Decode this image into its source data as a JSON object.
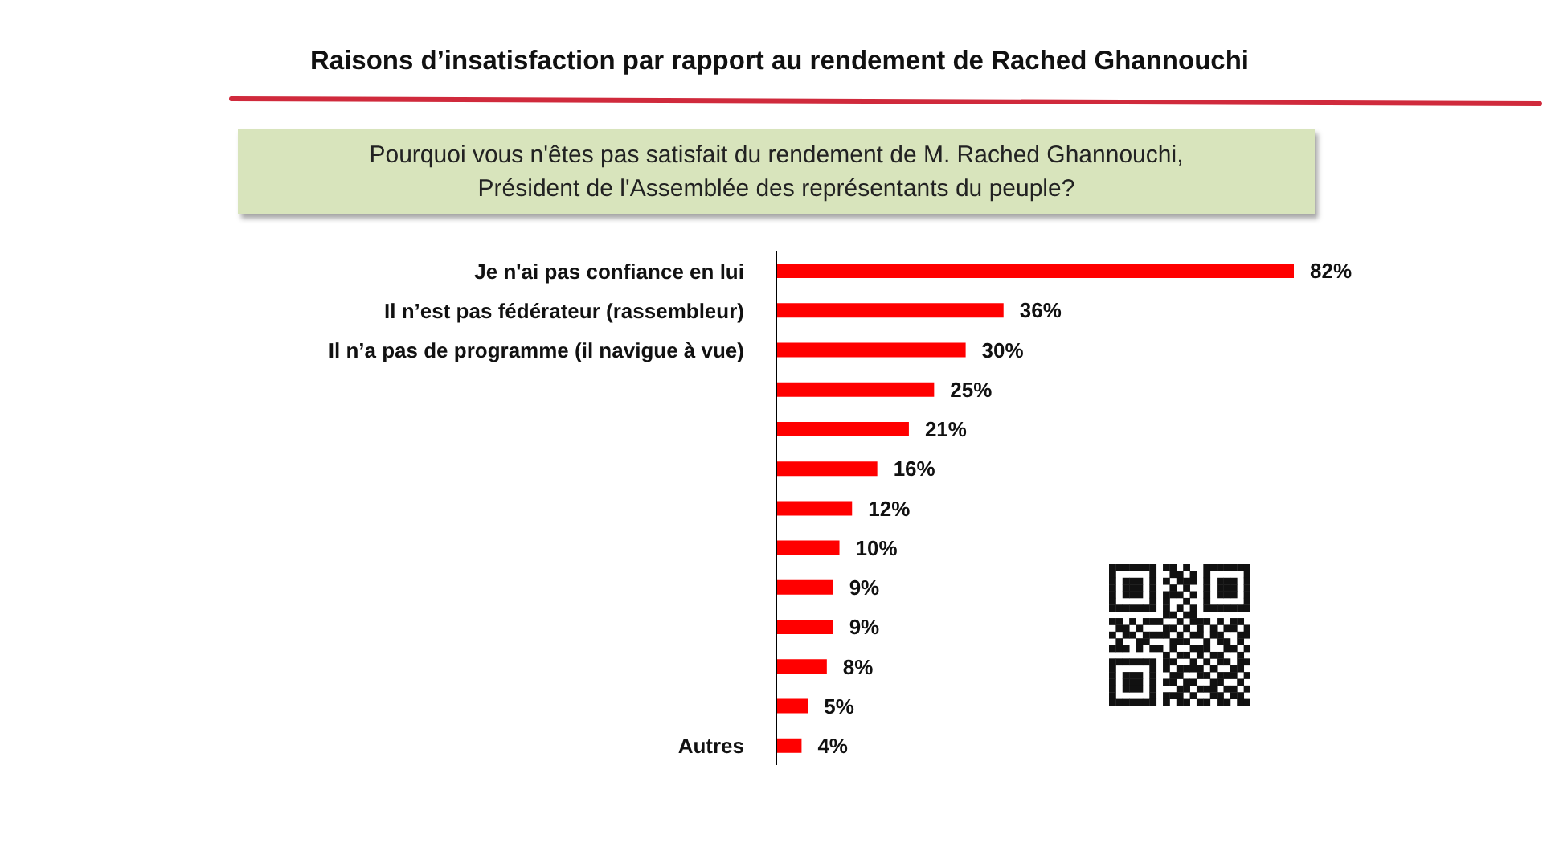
{
  "chart_data": {
    "type": "bar",
    "orientation": "horizontal",
    "title": "Raisons d’insatisfaction par rapport au rendement de Rached Ghannouchi",
    "subtitle": "Pourquoi vous n'êtes pas satisfait du rendement de M. Rached Ghannouchi,\nPrésident de l'Assemblée des représentants du peuple?",
    "categories": [
      "Je n'ai pas confiance en lui",
      "Il n’est pas fédérateur (rassembleur)",
      "Il n’a pas de programme (il navigue à vue)",
      null,
      null,
      null,
      null,
      null,
      null,
      null,
      null,
      null,
      "Autres"
    ],
    "values": [
      82,
      36,
      30,
      25,
      21,
      16,
      12,
      10,
      9,
      9,
      8,
      5,
      4
    ],
    "color": "#ff0000",
    "value_labels": [
      "82%",
      "36%",
      "30%",
      "25%",
      "21%",
      "16%",
      "12%",
      "10%",
      "9%",
      "9%",
      "8%",
      "5%",
      "4%"
    ]
  }
}
